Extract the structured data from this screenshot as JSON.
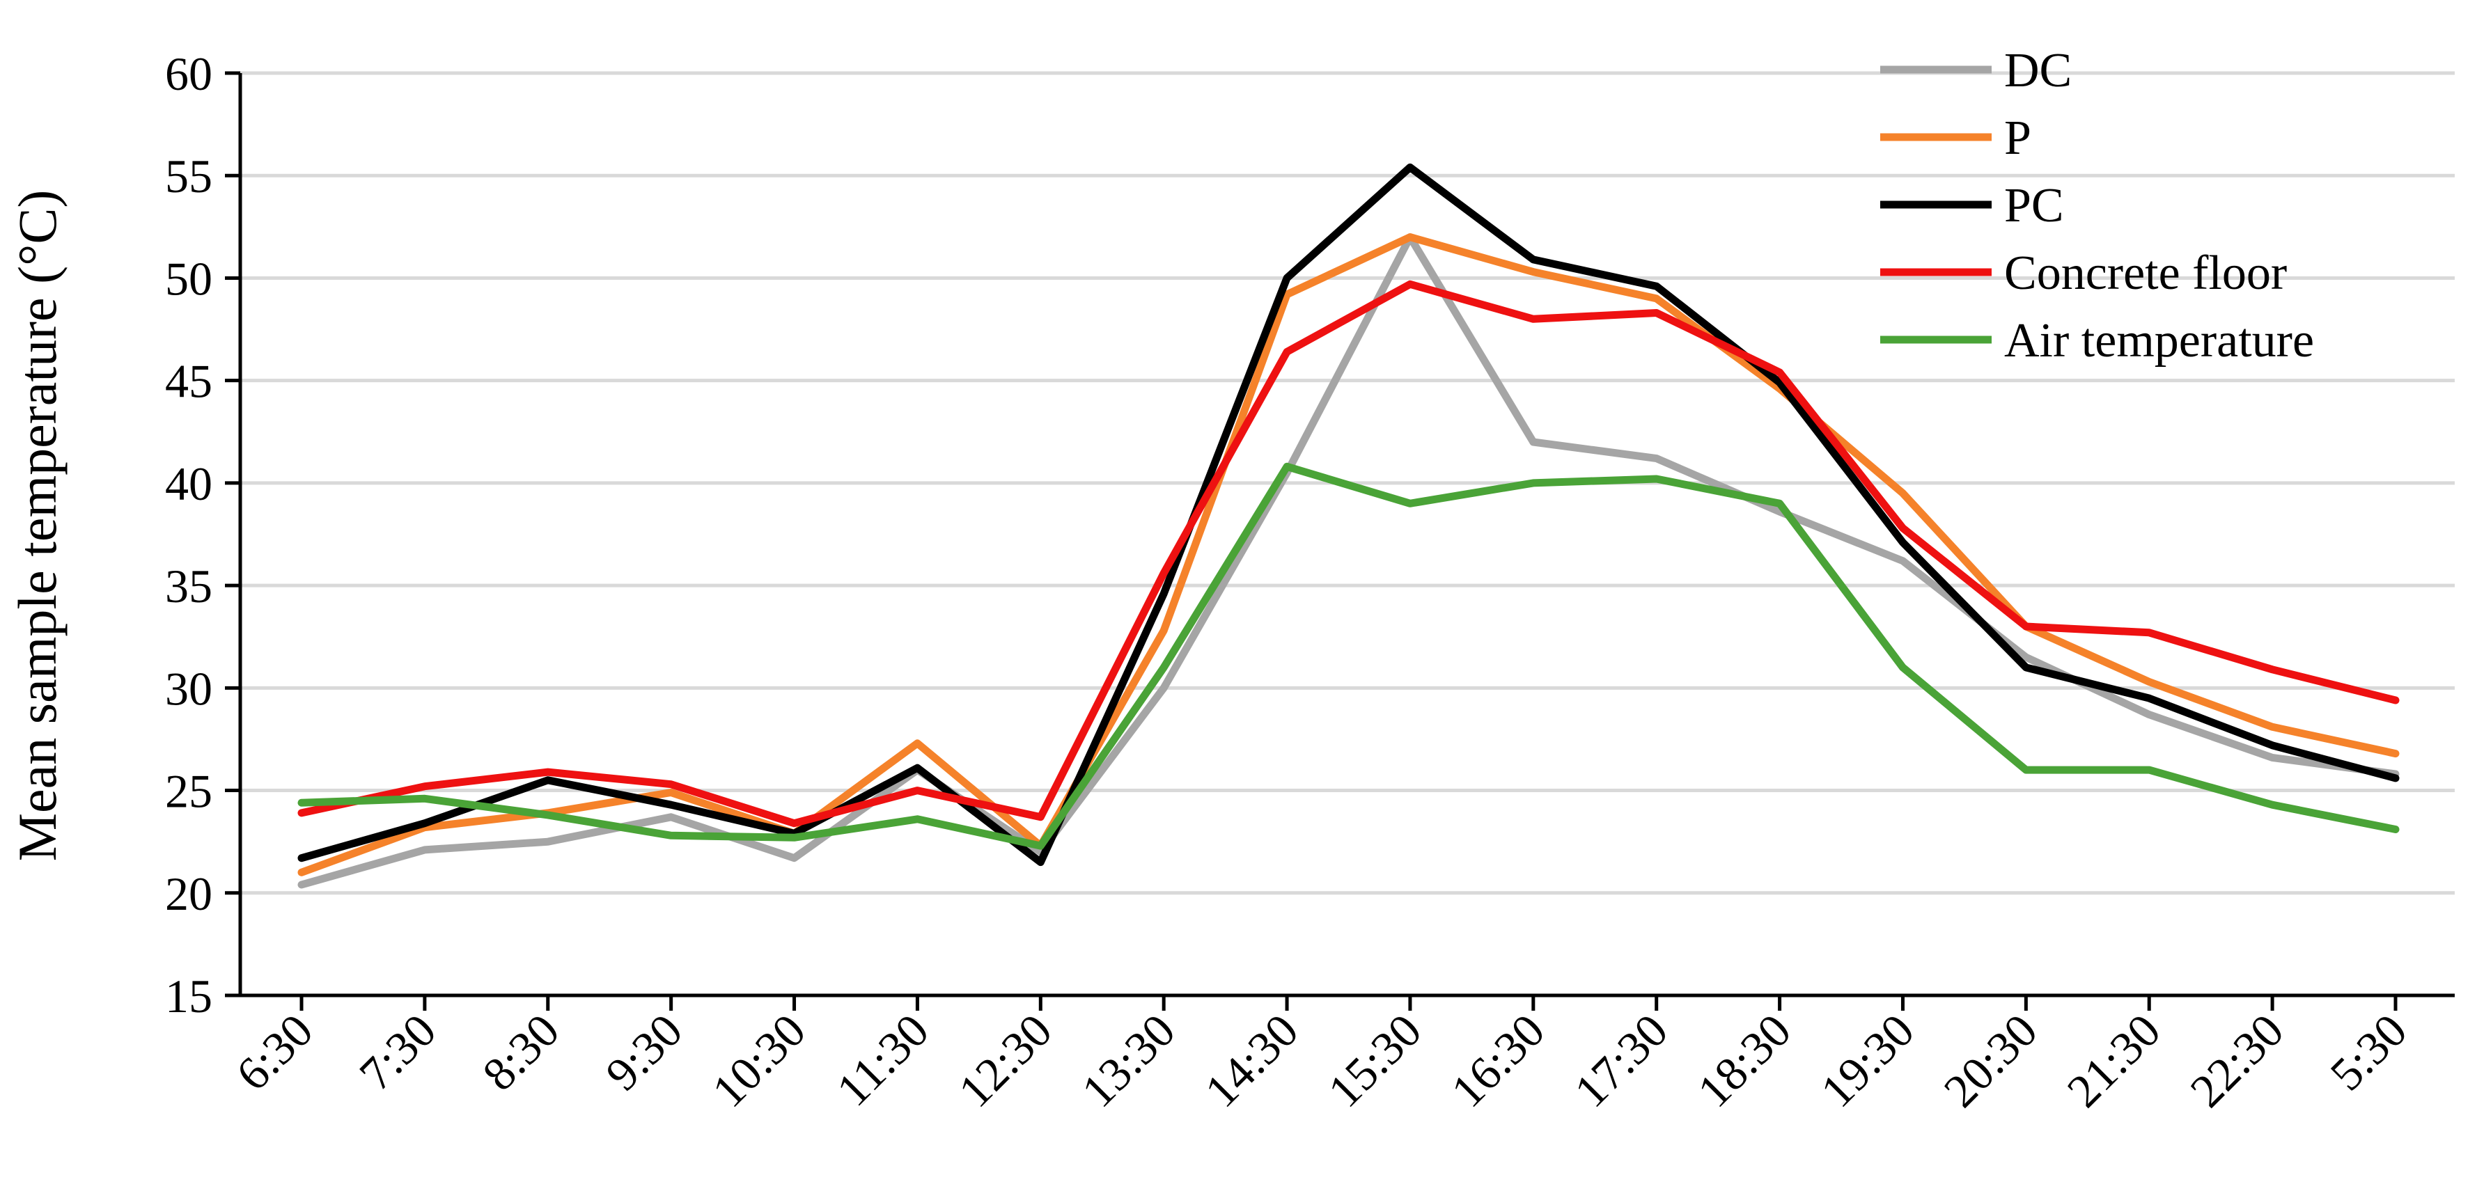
{
  "chart_data": {
    "type": "line",
    "title": "",
    "xlabel": "",
    "ylabel": "Mean sample temperature (°C)",
    "categories": [
      "6:30",
      "7:30",
      "8:30",
      "9:30",
      "10:30",
      "11:30",
      "12:30",
      "13:30",
      "14:30",
      "15:30",
      "16:30",
      "17:30",
      "18:30",
      "19:30",
      "20:30",
      "21:30",
      "22:30",
      "5:30"
    ],
    "ylim": [
      15,
      60
    ],
    "yticks": [
      15,
      20,
      25,
      30,
      35,
      40,
      45,
      50,
      55,
      60
    ],
    "grid": true,
    "legend_position": "top-right",
    "series": [
      {
        "name": "DC",
        "color": "#a5a5a5",
        "values": [
          20.4,
          22.1,
          22.5,
          23.7,
          21.7,
          26.0,
          22.0,
          30.0,
          40.5,
          52.0,
          42.0,
          41.2,
          38.6,
          36.2,
          31.5,
          28.7,
          26.6,
          25.8
        ]
      },
      {
        "name": "P",
        "color": "#f5822a",
        "values": [
          21.0,
          23.2,
          23.9,
          24.9,
          22.9,
          27.3,
          22.3,
          32.8,
          49.2,
          52.0,
          50.3,
          49.0,
          44.6,
          39.5,
          33.0,
          30.3,
          28.1,
          26.8
        ]
      },
      {
        "name": "PC",
        "color": "#000000",
        "values": [
          21.7,
          23.4,
          25.5,
          24.3,
          22.9,
          26.1,
          21.5,
          34.6,
          50.0,
          55.4,
          50.9,
          49.6,
          44.9,
          37.1,
          31.0,
          29.5,
          27.2,
          25.6
        ]
      },
      {
        "name": "Concrete floor",
        "color": "#ee1111",
        "values": [
          23.9,
          25.2,
          25.9,
          25.3,
          23.4,
          25.0,
          23.7,
          35.6,
          46.4,
          49.7,
          48.0,
          48.3,
          45.4,
          37.8,
          33.0,
          32.7,
          30.9,
          29.4
        ]
      },
      {
        "name": "Air temperature",
        "color": "#4aa337",
        "values": [
          24.4,
          24.6,
          23.8,
          22.8,
          22.7,
          23.6,
          22.3,
          31.0,
          40.8,
          39.0,
          40.0,
          40.2,
          39.0,
          31.0,
          26.0,
          26.0,
          24.3,
          23.1
        ]
      }
    ]
  }
}
